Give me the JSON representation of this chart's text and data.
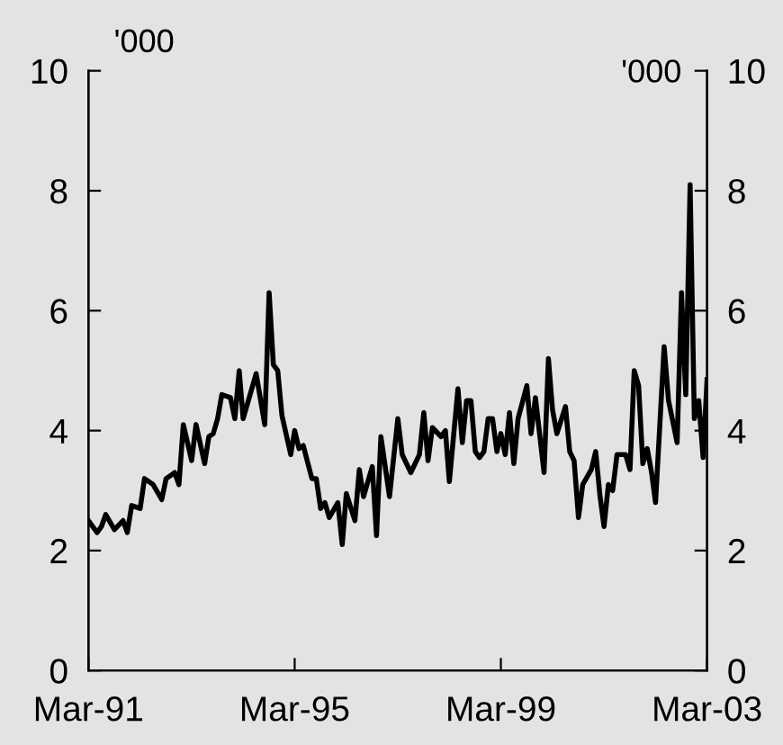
{
  "chart_data": {
    "type": "line",
    "ylabel": "'000",
    "y2label": "'000",
    "x": [
      "1991-03",
      "1991-05",
      "1991-06",
      "1991-07",
      "1991-09",
      "1991-11",
      "1991-12",
      "1992-01",
      "1992-03",
      "1992-04",
      "1992-06",
      "1992-08",
      "1992-09",
      "1992-11",
      "1992-12",
      "1993-01",
      "1993-03",
      "1993-04",
      "1993-06",
      "1993-07",
      "1993-08",
      "1993-09",
      "1993-10",
      "1993-12",
      "1994-01",
      "1994-02",
      "1994-03",
      "1994-06",
      "1994-08",
      "1994-09",
      "1994-10",
      "1994-11",
      "1994-12",
      "1995-02",
      "1995-03",
      "1995-04",
      "1995-05",
      "1995-07",
      "1995-08",
      "1995-09",
      "1995-10",
      "1995-11",
      "1996-01",
      "1996-02",
      "1996-03",
      "1996-05",
      "1996-06",
      "1996-07",
      "1996-09",
      "1996-10",
      "1996-11",
      "1997-01",
      "1997-03",
      "1997-04",
      "1997-06",
      "1997-08",
      "1997-09",
      "1997-10",
      "1997-11",
      "1998-01",
      "1998-02",
      "1998-03",
      "1998-05",
      "1998-06",
      "1998-07",
      "1998-08",
      "1998-09",
      "1998-10",
      "1998-11",
      "1998-12",
      "1999-01",
      "1999-02",
      "1999-03",
      "1999-04",
      "1999-05",
      "1999-06",
      "1999-07",
      "1999-09",
      "1999-10",
      "1999-11",
      "2000-01",
      "2000-02",
      "2000-03",
      "2000-04",
      "2000-06",
      "2000-07",
      "2000-08",
      "2000-09",
      "2000-10",
      "2000-12",
      "2001-01",
      "2001-02",
      "2001-03",
      "2001-04",
      "2001-05",
      "2001-06",
      "2001-08",
      "2001-09",
      "2001-10",
      "2001-11",
      "2001-12",
      "2002-01",
      "2002-02",
      "2002-03",
      "2002-05",
      "2002-06",
      "2002-08",
      "2002-09",
      "2002-10",
      "2002-11",
      "2002-12",
      "2003-01",
      "2003-02",
      "2003-03"
    ],
    "series": [
      {
        "color": "#000000",
        "values": [
          2.5,
          2.3,
          2.4,
          2.6,
          2.35,
          2.5,
          2.3,
          2.75,
          2.7,
          3.2,
          3.1,
          2.85,
          3.2,
          3.3,
          3.1,
          4.1,
          3.5,
          4.1,
          3.45,
          3.9,
          3.95,
          4.2,
          4.6,
          4.55,
          4.2,
          5.0,
          4.2,
          4.95,
          4.1,
          6.3,
          5.1,
          5.0,
          4.25,
          3.6,
          4.0,
          3.7,
          3.75,
          3.2,
          3.2,
          2.7,
          2.8,
          2.55,
          2.8,
          2.1,
          2.95,
          2.5,
          3.35,
          2.9,
          3.4,
          2.25,
          3.9,
          2.9,
          4.2,
          3.6,
          3.3,
          3.6,
          4.3,
          3.5,
          4.05,
          3.9,
          4.0,
          3.15,
          4.7,
          3.8,
          4.5,
          4.5,
          3.65,
          3.55,
          3.65,
          4.2,
          4.2,
          3.65,
          3.95,
          3.6,
          4.3,
          3.45,
          4.2,
          4.75,
          3.95,
          4.55,
          3.3,
          5.2,
          4.35,
          3.95,
          4.4,
          3.65,
          3.5,
          2.55,
          3.1,
          3.35,
          3.65,
          2.9,
          2.4,
          3.1,
          3.0,
          3.6,
          3.6,
          3.35,
          5.0,
          4.75,
          3.45,
          3.7,
          3.3,
          2.8,
          5.4,
          4.5,
          3.8,
          6.3,
          4.6,
          8.1,
          4.2,
          4.5,
          3.55,
          4.85
        ]
      }
    ],
    "xlim": [
      "1991-03",
      "2003-03"
    ],
    "xticks": [
      {
        "value": "1991-03",
        "label": "Mar-91"
      },
      {
        "value": "1995-03",
        "label": "Mar-95"
      },
      {
        "value": "1999-03",
        "label": "Mar-99"
      },
      {
        "value": "2003-03",
        "label": "Mar-03"
      }
    ],
    "ylim": [
      0,
      10
    ],
    "yticks": [
      0,
      2,
      4,
      6,
      8,
      10
    ],
    "y2lim": [
      0,
      10
    ],
    "y2ticks": [
      0,
      2,
      4,
      6,
      8,
      10
    ],
    "grid": false,
    "legend": false,
    "marker": "none",
    "line_style": "solid"
  }
}
